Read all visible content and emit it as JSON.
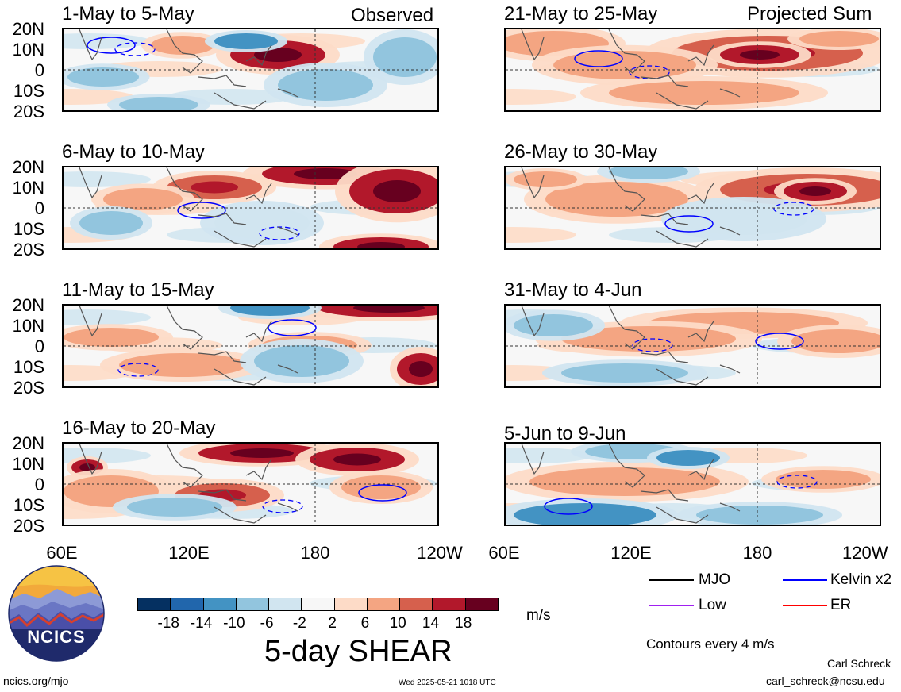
{
  "panels": [
    {
      "title": "1-May to 5-May",
      "tag": "Observed"
    },
    {
      "title": "21-May to 25-May",
      "tag": "Projected Sum"
    },
    {
      "title": "6-May to 10-May",
      "tag": ""
    },
    {
      "title": "26-May to 30-May",
      "tag": ""
    },
    {
      "title": "11-May to 15-May",
      "tag": ""
    },
    {
      "title": "31-May to 4-Jun",
      "tag": ""
    },
    {
      "title": "16-May to 20-May",
      "tag": ""
    },
    {
      "title": "5-Jun to 9-Jun",
      "tag": ""
    }
  ],
  "y_ticks": [
    "20N",
    "10N",
    "0",
    "10S",
    "20S"
  ],
  "x_ticks": [
    "60E",
    "120E",
    "180",
    "120W"
  ],
  "colorbar": {
    "ticks": [
      "-18",
      "-14",
      "-10",
      "-6",
      "-2",
      "2",
      "6",
      "10",
      "14",
      "18"
    ],
    "unit": "m/s",
    "colors": [
      "#053061",
      "#2166ac",
      "#4393c3",
      "#92c5de",
      "#d1e5f0",
      "#f7f7f7",
      "#fddbc7",
      "#f4a582",
      "#d6604d",
      "#b2182b",
      "#67001f"
    ]
  },
  "main_title": "5-day SHEAR",
  "legend": {
    "mjo": "MJO",
    "kelvin": "Kelvin x2",
    "low": "Low",
    "er": "ER",
    "contours": "Contours every 4 m/s",
    "colors": {
      "mjo": "#000000",
      "kelvin": "#0000ff",
      "low": "#a020f0",
      "er": "#ff0000"
    }
  },
  "logo_text": "NCICS",
  "footer": {
    "left": "ncics.org/mjo",
    "center": "Wed 2025-05-21 1018 UTC",
    "author": "Carl Schreck",
    "email": "carl_schreck@ncsu.edu"
  },
  "chart_data": {
    "type": "heatmap",
    "title": "5-day SHEAR",
    "unit": "m/s",
    "xlabel": "",
    "ylabel": "",
    "x_ticks": [
      "60E",
      "120E",
      "180",
      "120W"
    ],
    "y_ticks": [
      "20N",
      "10N",
      "0",
      "10S",
      "20S"
    ],
    "color_levels": [
      -18,
      -14,
      -10,
      -6,
      -2,
      2,
      6,
      10,
      14,
      18
    ],
    "contour_interval": "4 m/s",
    "series": [
      {
        "name": "MJO",
        "color": "#000000"
      },
      {
        "name": "Kelvin x2",
        "color": "#0000ff"
      },
      {
        "name": "Low",
        "color": "#a020f0"
      },
      {
        "name": "ER",
        "color": "#ff0000"
      }
    ]
  }
}
